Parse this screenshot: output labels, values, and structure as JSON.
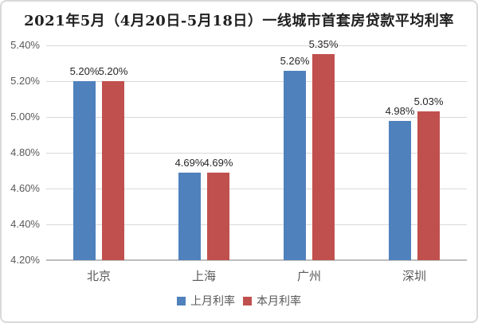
{
  "frame": {
    "background": "#ffffff",
    "border_color": "#d9d9d9"
  },
  "chart_data": {
    "type": "bar",
    "title": "2021年5月（4月20日-5月18日）一线城市首套房贷款平均利率",
    "categories": [
      "北京",
      "上海",
      "广州",
      "深圳"
    ],
    "series": [
      {
        "name": "上月利率",
        "color": "#4f81bd",
        "values": [
          5.2,
          4.69,
          5.26,
          4.98
        ],
        "labels": [
          "5.20%",
          "4.69%",
          "5.26%",
          "4.98%"
        ]
      },
      {
        "name": "本月利率",
        "color": "#c0504d",
        "values": [
          5.2,
          4.69,
          5.35,
          5.03
        ],
        "labels": [
          "5.20%",
          "4.69%",
          "5.35%",
          "5.03%"
        ]
      }
    ],
    "ylim": [
      4.2,
      5.4
    ],
    "ytick_step": 0.2,
    "ytick_labels": [
      "4.20%",
      "4.40%",
      "4.60%",
      "4.80%",
      "5.00%",
      "5.20%",
      "5.40%"
    ],
    "grid": true,
    "legend_position": "bottom",
    "colors": {
      "gridline": "#d9d9d9",
      "axis_line": "#bdbdbd",
      "axis_text": "#595959",
      "data_label_text": "#262626",
      "title_text": "#1f1f1f"
    }
  }
}
